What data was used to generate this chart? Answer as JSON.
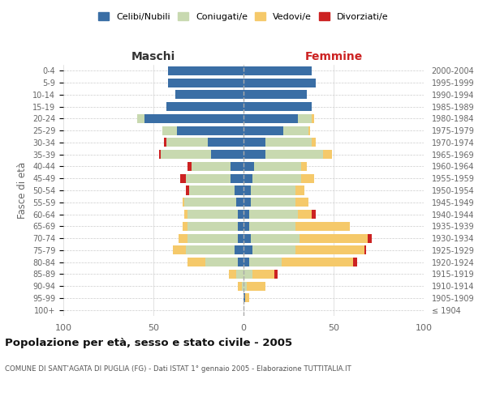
{
  "age_groups": [
    "100+",
    "95-99",
    "90-94",
    "85-89",
    "80-84",
    "75-79",
    "70-74",
    "65-69",
    "60-64",
    "55-59",
    "50-54",
    "45-49",
    "40-44",
    "35-39",
    "30-34",
    "25-29",
    "20-24",
    "15-19",
    "10-14",
    "5-9",
    "0-4"
  ],
  "birth_years": [
    "≤ 1904",
    "1905-1909",
    "1910-1914",
    "1915-1919",
    "1920-1924",
    "1925-1929",
    "1930-1934",
    "1935-1939",
    "1940-1944",
    "1945-1949",
    "1950-1954",
    "1955-1959",
    "1960-1964",
    "1965-1969",
    "1970-1974",
    "1975-1979",
    "1980-1984",
    "1985-1989",
    "1990-1994",
    "1995-1999",
    "2000-2004"
  ],
  "colors": {
    "celibi": "#3a6ea5",
    "coniugati": "#c8d9b0",
    "vedovi": "#f5c96a",
    "divorziati": "#cc2222"
  },
  "maschi": {
    "celibi": [
      0,
      0,
      0,
      0,
      3,
      5,
      3,
      3,
      3,
      4,
      5,
      7,
      7,
      18,
      20,
      37,
      55,
      43,
      38,
      42,
      42
    ],
    "coniugati": [
      0,
      0,
      1,
      4,
      18,
      27,
      28,
      28,
      28,
      29,
      25,
      25,
      22,
      28,
      23,
      8,
      4,
      0,
      0,
      0,
      0
    ],
    "vedovi": [
      0,
      0,
      2,
      4,
      10,
      7,
      5,
      3,
      2,
      1,
      0,
      0,
      0,
      0,
      0,
      0,
      0,
      0,
      0,
      0,
      0
    ],
    "divorziati": [
      0,
      0,
      0,
      0,
      0,
      0,
      0,
      0,
      0,
      0,
      2,
      3,
      2,
      1,
      1,
      0,
      0,
      0,
      0,
      0,
      0
    ]
  },
  "femmine": {
    "celibi": [
      0,
      1,
      0,
      0,
      3,
      5,
      4,
      3,
      3,
      4,
      4,
      5,
      6,
      12,
      12,
      22,
      30,
      38,
      35,
      40,
      38
    ],
    "coniugati": [
      0,
      0,
      2,
      5,
      18,
      24,
      27,
      26,
      27,
      25,
      25,
      27,
      26,
      32,
      26,
      14,
      8,
      0,
      0,
      0,
      0
    ],
    "vedovi": [
      0,
      2,
      10,
      12,
      40,
      38,
      38,
      30,
      8,
      7,
      5,
      7,
      3,
      5,
      2,
      1,
      1,
      0,
      0,
      0,
      0
    ],
    "divorziati": [
      0,
      0,
      0,
      2,
      2,
      1,
      2,
      0,
      2,
      0,
      0,
      0,
      0,
      0,
      0,
      0,
      0,
      0,
      0,
      0,
      0
    ]
  },
  "title": "Popolazione per età, sesso e stato civile - 2005",
  "subtitle": "COMUNE DI SANT'AGATA DI PUGLIA (FG) - Dati ISTAT 1° gennaio 2005 - Elaborazione TUTTITALIA.IT",
  "xlabel_left": "Maschi",
  "xlabel_right": "Femmine",
  "ylabel_left": "Fasce di età",
  "xlim": 100,
  "legend_labels": [
    "Celibi/Nubili",
    "Coniugati/e",
    "Vedovi/e",
    "Divorziati/e"
  ],
  "background_color": "#ffffff",
  "maschi_label_color": "#333333",
  "femmine_label_color": "#cc2222",
  "axis_text_color": "#666666",
  "title_color": "#111111",
  "subtitle_color": "#555555"
}
